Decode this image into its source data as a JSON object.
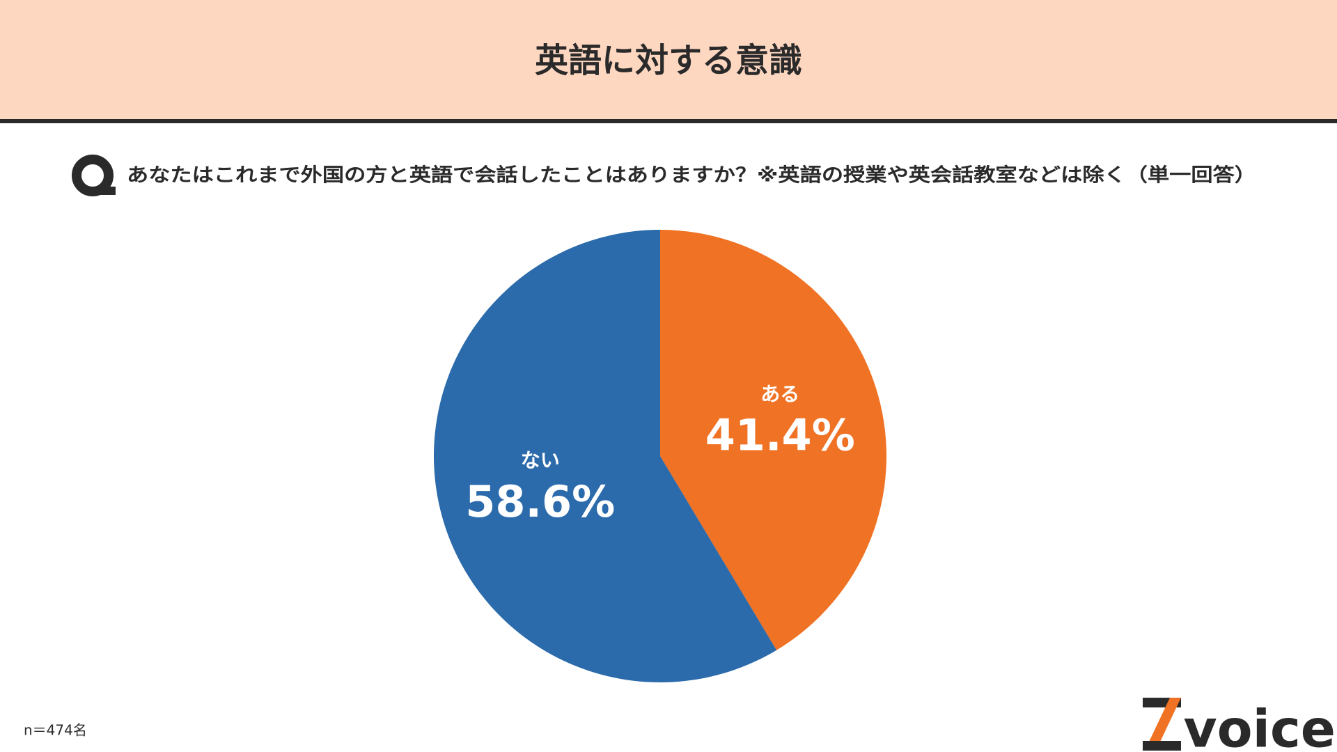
{
  "chart_data": {
    "type": "pie",
    "title": "英語に対する意識",
    "question": "あなたはこれまで外国の方と英語で会話したことはありますか？※英語の授業や英会話教室などは除く（単一回答）",
    "categories": [
      "ある",
      "ない"
    ],
    "values": [
      41.4,
      58.6
    ],
    "value_labels": [
      "41.4%",
      "58.6%"
    ],
    "colors": [
      "#f07224",
      "#2b6aab"
    ],
    "note": "n＝474名",
    "logo": "voice"
  }
}
